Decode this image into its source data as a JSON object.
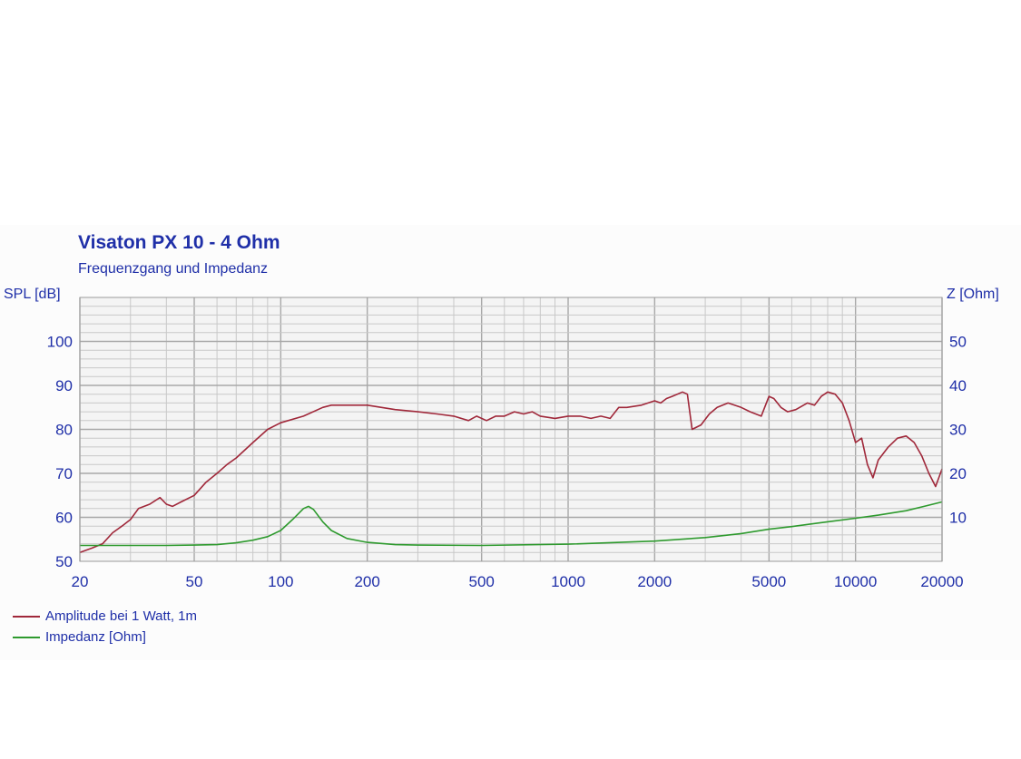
{
  "chart_data": {
    "type": "line",
    "title": "Visaton PX 10 - 4 Ohm",
    "subtitle": "Frequenzgang und Impedanz",
    "ylabel": "SPL [dB]",
    "y2label": "Z [Ohm]",
    "x_scale": "log",
    "xlim": [
      20,
      20000
    ],
    "ylim": [
      50,
      110
    ],
    "y2lim": [
      0,
      60
    ],
    "x_ticks": [
      20,
      50,
      100,
      200,
      500,
      1000,
      2000,
      5000,
      10000,
      20000
    ],
    "x_tick_labels": [
      "20",
      "50",
      "100",
      "200",
      "500",
      "1000",
      "2000",
      "5000",
      "10000",
      "20000"
    ],
    "y_ticks": [
      50,
      60,
      70,
      80,
      90,
      100
    ],
    "y_tick_labels": [
      "50",
      "60",
      "70",
      "80",
      "90",
      "100"
    ],
    "y2_ticks": [
      10,
      20,
      30,
      40,
      50
    ],
    "y2_tick_labels": [
      "10",
      "20",
      "30",
      "40",
      "50"
    ],
    "grid": true,
    "legend_position": "bottom-left",
    "colors": {
      "amplitude": "#a0283a",
      "impedance": "#2e9a2e",
      "text": "#1f2fa8",
      "grid": "#c8c8c8",
      "grid_major": "#a8a8a8"
    },
    "series": [
      {
        "name": "Amplitude bei 1 Watt, 1m",
        "axis": "left",
        "x": [
          20,
          22,
          24,
          26,
          28,
          30,
          32,
          35,
          38,
          40,
          42,
          45,
          50,
          55,
          60,
          65,
          70,
          80,
          90,
          100,
          120,
          140,
          150,
          170,
          200,
          250,
          300,
          350,
          400,
          450,
          480,
          520,
          560,
          600,
          650,
          700,
          750,
          800,
          900,
          1000,
          1100,
          1200,
          1300,
          1400,
          1500,
          1600,
          1800,
          2000,
          2100,
          2200,
          2300,
          2500,
          2600,
          2700,
          2900,
          3100,
          3300,
          3600,
          4000,
          4300,
          4700,
          5000,
          5200,
          5500,
          5800,
          6200,
          6800,
          7200,
          7600,
          8000,
          8500,
          9000,
          9500,
          10000,
          10500,
          11000,
          11500,
          12000,
          13000,
          14000,
          15000,
          16000,
          17000,
          18000,
          19000,
          20000
        ],
        "values": [
          52,
          53,
          54,
          56.5,
          58,
          59.5,
          62,
          63,
          64.5,
          63,
          62.5,
          63.5,
          65,
          68,
          70,
          72,
          73.5,
          77,
          80,
          81.5,
          83,
          85,
          85.5,
          85.5,
          85.5,
          84.5,
          84,
          83.5,
          83,
          82,
          83,
          82,
          83,
          83,
          84,
          83.5,
          84,
          83,
          82.5,
          83,
          83,
          82.5,
          83,
          82.5,
          85,
          85,
          85.5,
          86.5,
          86,
          87,
          87.5,
          88.5,
          88,
          80,
          81,
          83.5,
          85,
          86,
          85,
          84,
          83,
          87.5,
          87,
          85,
          84,
          84.5,
          86,
          85.5,
          87.5,
          88.5,
          88,
          86,
          82,
          77,
          78,
          72,
          69,
          73,
          76,
          78,
          78.5,
          77,
          74,
          70,
          67,
          71
        ]
      },
      {
        "name": "Impedanz [Ohm]",
        "axis": "right",
        "x": [
          20,
          30,
          40,
          50,
          60,
          70,
          80,
          90,
          100,
          110,
          120,
          125,
          130,
          140,
          150,
          170,
          200,
          250,
          300,
          500,
          1000,
          2000,
          3000,
          4000,
          5000,
          6000,
          8000,
          10000,
          12000,
          15000,
          20000
        ],
        "values": [
          3.6,
          3.6,
          3.6,
          3.7,
          3.8,
          4.2,
          4.8,
          5.6,
          7.0,
          9.5,
          12.0,
          12.5,
          11.8,
          9.0,
          7.0,
          5.2,
          4.3,
          3.8,
          3.7,
          3.6,
          3.9,
          4.6,
          5.4,
          6.3,
          7.3,
          7.9,
          9.0,
          9.8,
          10.5,
          11.5,
          13.5
        ]
      }
    ]
  }
}
